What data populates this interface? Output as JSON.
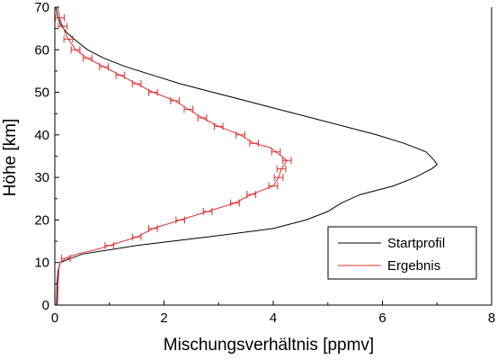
{
  "chart_data": {
    "type": "line",
    "xlabel": "Mischungsverhältnis [ppmv]",
    "ylabel": "Höhe [km]",
    "xlim": [
      0,
      8
    ],
    "ylim": [
      0,
      70
    ],
    "xticks": [
      "0",
      "2",
      "4",
      "6",
      "8"
    ],
    "yticks": [
      "0",
      "10",
      "20",
      "30",
      "40",
      "50",
      "60",
      "70"
    ],
    "grid": false,
    "legend": "bottom-right",
    "colors": {
      "startprofil": "#000000",
      "ergebnis": "#e03030"
    },
    "series": [
      {
        "name": "Startprofil",
        "points": [
          [
            0.03,
            0
          ],
          [
            0.04,
            5
          ],
          [
            0.06,
            8
          ],
          [
            0.1,
            10
          ],
          [
            0.5,
            12
          ],
          [
            1.5,
            14
          ],
          [
            2.8,
            16
          ],
          [
            4.0,
            18
          ],
          [
            4.6,
            20
          ],
          [
            5.0,
            22
          ],
          [
            5.25,
            24
          ],
          [
            5.6,
            26
          ],
          [
            6.2,
            28
          ],
          [
            6.6,
            30
          ],
          [
            6.9,
            32
          ],
          [
            7.0,
            33
          ],
          [
            6.95,
            34
          ],
          [
            6.8,
            36
          ],
          [
            6.4,
            38
          ],
          [
            5.9,
            40
          ],
          [
            5.3,
            42
          ],
          [
            4.7,
            44
          ],
          [
            4.1,
            46
          ],
          [
            3.5,
            48
          ],
          [
            2.9,
            50
          ],
          [
            2.3,
            52
          ],
          [
            1.8,
            54
          ],
          [
            1.3,
            56
          ],
          [
            0.9,
            58
          ],
          [
            0.6,
            60
          ],
          [
            0.4,
            62
          ],
          [
            0.22,
            64
          ],
          [
            0.1,
            66
          ],
          [
            0.05,
            68
          ],
          [
            0.02,
            70
          ]
        ]
      },
      {
        "name": "Ergebnis",
        "points": [
          [
            0.05,
            0
          ],
          [
            0.06,
            4
          ],
          [
            0.07,
            8
          ],
          [
            0.08,
            9
          ],
          [
            0.1,
            10
          ],
          [
            0.2,
            11
          ],
          [
            0.4,
            12
          ],
          [
            0.75,
            13
          ],
          [
            1.0,
            14
          ],
          [
            1.25,
            15
          ],
          [
            1.5,
            16
          ],
          [
            1.8,
            18
          ],
          [
            2.3,
            20
          ],
          [
            2.8,
            22
          ],
          [
            3.3,
            24
          ],
          [
            3.6,
            26
          ],
          [
            3.8,
            27
          ],
          [
            4.0,
            28
          ],
          [
            4.1,
            30
          ],
          [
            4.15,
            32
          ],
          [
            4.25,
            34
          ],
          [
            4.1,
            35.5
          ],
          [
            3.95,
            37
          ],
          [
            3.65,
            38
          ],
          [
            3.4,
            40
          ],
          [
            3.0,
            42
          ],
          [
            2.7,
            44
          ],
          [
            2.45,
            46
          ],
          [
            2.2,
            48
          ],
          [
            1.8,
            50
          ],
          [
            1.5,
            52
          ],
          [
            1.2,
            54
          ],
          [
            0.9,
            56
          ],
          [
            0.6,
            58
          ],
          [
            0.38,
            60
          ],
          [
            0.22,
            63
          ],
          [
            0.16,
            65
          ],
          [
            0.1,
            67
          ],
          [
            0.07,
            69
          ],
          [
            0.05,
            70
          ]
        ],
        "error_bar_altitudes": [
          11,
          14,
          16,
          18,
          20,
          22,
          24,
          26,
          28,
          30,
          32,
          34,
          36,
          38,
          40,
          42,
          44,
          46,
          48,
          50,
          52,
          54,
          56,
          58,
          60,
          62.5,
          65.5,
          67.5
        ],
        "error_half_width": 0.08
      }
    ]
  }
}
